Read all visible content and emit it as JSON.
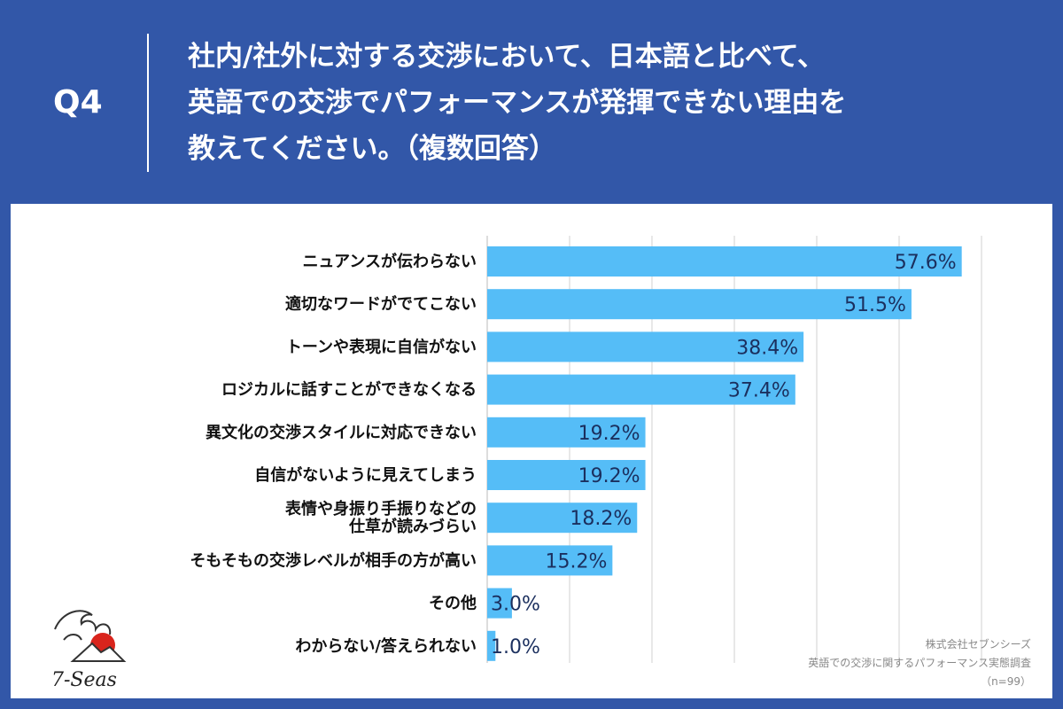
{
  "header": {
    "q_label": "Q4",
    "question_lines": [
      "社内/社外に対する交渉において、日本語と比べて、",
      "英語での交渉でパフォーマンスが発揮できない理由を",
      "教えてください。（複数回答）"
    ]
  },
  "logo": {
    "text": "7-Seas"
  },
  "source": {
    "line1": "株式会社セブンシーズ",
    "line2": "英語での交渉に関するパフォーマンス実態調査",
    "line3": "（n=99）"
  },
  "colors": {
    "background": "#3257a8",
    "bar": "#55bdf7",
    "grid": "#d0d0d0"
  },
  "chart_data": {
    "type": "bar",
    "orientation": "horizontal",
    "categories": [
      [
        "ニュアンスが伝わらない"
      ],
      [
        "適切なワードがでてこない"
      ],
      [
        "トーンや表現に自信がない"
      ],
      [
        "ロジカルに話すことができなくなる"
      ],
      [
        "異文化の交渉スタイルに対応できない"
      ],
      [
        "自信がないように見えてしまう"
      ],
      [
        "表情や身振り手振りなどの",
        "仕草が読みづらい"
      ],
      [
        "そもそもの交渉レベルが相手の方が高い"
      ],
      [
        "その他"
      ],
      [
        "わからない/答えられない"
      ]
    ],
    "values": [
      57.6,
      51.5,
      38.4,
      37.4,
      19.2,
      19.2,
      18.2,
      15.2,
      3.0,
      1.0
    ],
    "value_labels": [
      "57.6%",
      "51.5%",
      "38.4%",
      "37.4%",
      "19.2%",
      "19.2%",
      "18.2%",
      "15.2%",
      "3.0%",
      "1.0%"
    ],
    "xlim": [
      0,
      60
    ],
    "grid": true
  }
}
